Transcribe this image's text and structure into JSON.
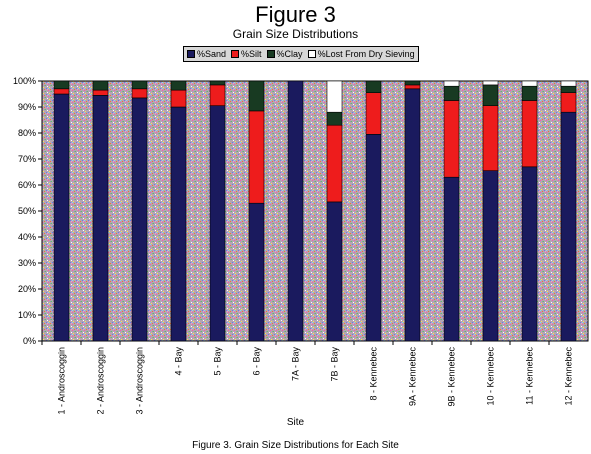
{
  "title": "Figure 3",
  "subtitle": "Grain Size Distributions",
  "caption": "Figure 3.  Grain Size Distributions for Each Site",
  "chart_data": {
    "type": "bar",
    "stacked": true,
    "xlabel": "Site",
    "ylabel": "",
    "ylim": [
      0,
      100
    ],
    "y_ticks": [
      "0%",
      "10%",
      "20%",
      "30%",
      "40%",
      "50%",
      "60%",
      "70%",
      "80%",
      "90%",
      "100%"
    ],
    "legend_position": "top-center",
    "grid": false,
    "categories": [
      "1 - Androscoggin",
      "2 - Androscoggin",
      "3 - Androscoggin",
      "4 - Bay",
      "5 - Bay",
      "6 - Bay",
      "7A - Bay",
      "7B - Bay",
      "8 - Kennebec",
      "9A - Kennebec",
      "9B - Kennebec",
      "10 - Kennebec",
      "11 - Kennebec",
      "12 - Kennebec"
    ],
    "series": [
      {
        "name": "%Sand",
        "color": "#1a1a5e",
        "values": [
          95,
          94.5,
          93.5,
          90,
          90.5,
          53,
          100,
          53.5,
          79.5,
          97,
          63,
          65.5,
          67,
          88
        ]
      },
      {
        "name": "%Silt",
        "color": "#ee1c1c",
        "values": [
          2,
          2,
          3.5,
          6.5,
          8,
          35.5,
          0,
          29.5,
          16,
          1.5,
          29.5,
          25,
          25.5,
          7.5
        ]
      },
      {
        "name": "%Clay",
        "color": "#183a22",
        "values": [
          3,
          3.5,
          3,
          3.5,
          1.5,
          11.5,
          0,
          5,
          4.5,
          1.5,
          5.5,
          8,
          5.5,
          2.5
        ]
      },
      {
        "name": "%Lost From Dry Sieving",
        "color": "#ffffff",
        "values": [
          0,
          0,
          0,
          0,
          0,
          0,
          0,
          12,
          0,
          0,
          2,
          1.5,
          2,
          2
        ]
      }
    ]
  }
}
